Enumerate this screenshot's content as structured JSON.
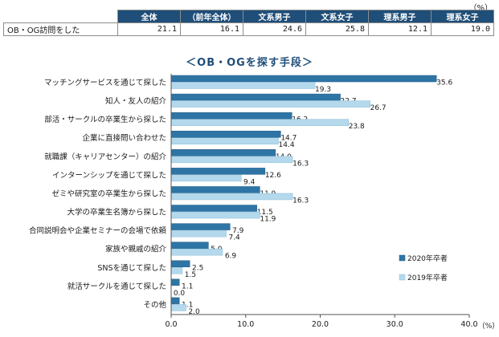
{
  "unit_label": "（%）",
  "summary_table": {
    "headers": [
      "全体",
      "（前年全体）",
      "文系男子",
      "文系女子",
      "理系男子",
      "理系女子"
    ],
    "row_label": "OB・OG訪問をした",
    "values": [
      "21.1",
      "16.1",
      "24.6",
      "25.8",
      "12.1",
      "19.0"
    ]
  },
  "colors": {
    "series_2020": "#2e75a6",
    "series_2019": "#b4d8ec",
    "header_bg": "#1f4e79"
  },
  "chart_data": {
    "type": "bar",
    "orientation": "horizontal",
    "title": "＜OB・OGを探す手段＞",
    "categories": [
      "マッチングサービスを通じて探した",
      "知人・友人の紹介",
      "部活・サークルの卒業生から探した",
      "企業に直接問い合わせた",
      "就職課（キャリアセンター）の紹介",
      "インターンシップを通じて探した",
      "ゼミや研究室の卒業生から探した",
      "大学の卒業生名簿から探した",
      "合同説明会や企業セミナーの会場で依頼",
      "家族や親戚の紹介",
      "SNSを通じて探した",
      "就活サークルを通じて探した",
      "その他"
    ],
    "series": [
      {
        "name": "2020年卒者",
        "values": [
          35.6,
          22.7,
          16.2,
          14.7,
          14.0,
          12.6,
          11.9,
          11.5,
          7.9,
          5.0,
          2.5,
          1.1,
          1.1
        ]
      },
      {
        "name": "2019年卒者",
        "values": [
          19.3,
          26.7,
          23.8,
          14.4,
          16.3,
          9.4,
          16.3,
          11.9,
          7.4,
          6.9,
          1.5,
          0.0,
          2.0
        ]
      }
    ],
    "value_labels": [
      [
        "35.6",
        "22.7",
        "16.2",
        "14.7",
        "14.0",
        "12.6",
        "11.9",
        "11.5",
        "7.9",
        "5.0",
        "2.5",
        "1.1",
        "1.1"
      ],
      [
        "19.3",
        "26.7",
        "23.8",
        "14.4",
        "16.3",
        "9.4",
        "16.3",
        "11.9",
        "7.4",
        "6.9",
        "1.5",
        "0.0",
        "2.0"
      ]
    ],
    "xlim": [
      0,
      40
    ],
    "xticks": [
      "0.0",
      "10.0",
      "20.0",
      "30.0",
      "40.0"
    ],
    "xlabel_unit": "（%）",
    "legend_position": "bottom-right",
    "grid": false
  }
}
